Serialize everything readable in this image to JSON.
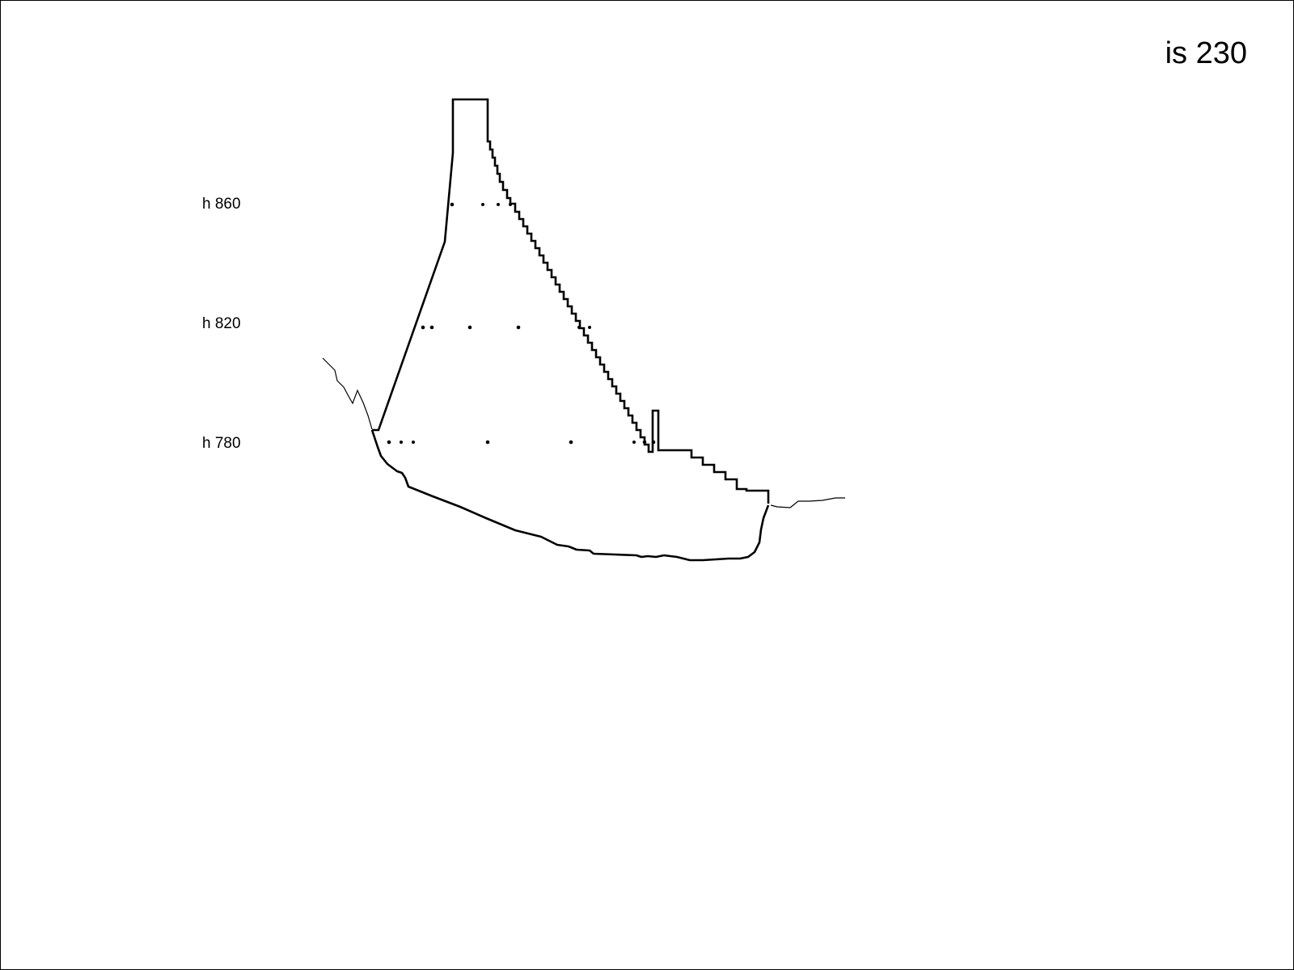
{
  "title": "is 230",
  "levels": [
    {
      "label": "h 860"
    },
    {
      "label": "h 820"
    },
    {
      "label": "h 780"
    }
  ],
  "colors": {
    "line": "#000000",
    "background": "#ffffff"
  }
}
